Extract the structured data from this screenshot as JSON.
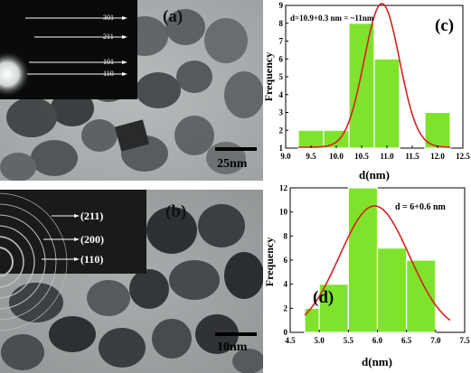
{
  "panel_a": {
    "label": "(a)",
    "scale_bar": "25nm",
    "saed_rings": [
      "301",
      "211",
      "101",
      "110"
    ]
  },
  "panel_b": {
    "label": "(b)",
    "scale_bar": "10nm",
    "saed_rings": [
      "(211)",
      "(200)",
      "(110)"
    ]
  },
  "chart_data": [
    {
      "panel": "(c)",
      "type": "bar",
      "annotation": "d=10.9+0.3 nm = ~11nm",
      "xlabel": "d(nm)",
      "ylabel": "Frequency",
      "xlim": [
        9.0,
        12.5
      ],
      "ylim": [
        1,
        9
      ],
      "x_ticks": [
        "9.0",
        "9.5",
        "10.0",
        "10.5",
        "11.0",
        "11.5",
        "12.0",
        "12.5"
      ],
      "y_ticks": [
        "1",
        "2",
        "3",
        "4",
        "5",
        "6",
        "7",
        "8",
        "9"
      ],
      "bins": [
        {
          "from": 9.25,
          "to": 9.75,
          "value": 2
        },
        {
          "from": 9.75,
          "to": 10.25,
          "value": 2
        },
        {
          "from": 10.25,
          "to": 10.75,
          "value": 8
        },
        {
          "from": 10.75,
          "to": 11.25,
          "value": 6
        },
        {
          "from": 11.25,
          "to": 11.75,
          "value": 1
        },
        {
          "from": 11.75,
          "to": 12.25,
          "value": 3
        }
      ],
      "fit_curve": {
        "type": "gaussian",
        "center": 10.9,
        "sigma": 0.35,
        "peak": 9.1,
        "baseline": 1.05
      },
      "bar_color": "#7fe32b",
      "curve_color": "#d82020"
    },
    {
      "panel": "(d)",
      "type": "bar",
      "annotation": "d = 6+0.6 nm",
      "xlabel": "d(nm)",
      "ylabel": "Frequency",
      "xlim": [
        4.5,
        7.5
      ],
      "ylim": [
        0,
        12
      ],
      "x_ticks": [
        "4.5",
        "5.0",
        "5.5",
        "6.0",
        "6.5",
        "7.0",
        "7.5"
      ],
      "y_ticks": [
        "0",
        "2",
        "4",
        "6",
        "8",
        "10",
        "12"
      ],
      "bins": [
        {
          "from": 4.75,
          "to": 5.0,
          "value": 2
        },
        {
          "from": 5.0,
          "to": 5.5,
          "value": 4
        },
        {
          "from": 5.5,
          "to": 6.0,
          "value": 12
        },
        {
          "from": 6.0,
          "to": 6.5,
          "value": 7
        },
        {
          "from": 6.5,
          "to": 7.0,
          "value": 6
        },
        {
          "from": 7.0,
          "to": 7.25,
          "value": 0
        }
      ],
      "fit_curve": {
        "type": "gaussian",
        "center": 5.95,
        "sigma": 0.6,
        "peak": 10.5,
        "baseline": 0
      },
      "bar_color": "#7fe32b",
      "curve_color": "#d82020"
    }
  ]
}
